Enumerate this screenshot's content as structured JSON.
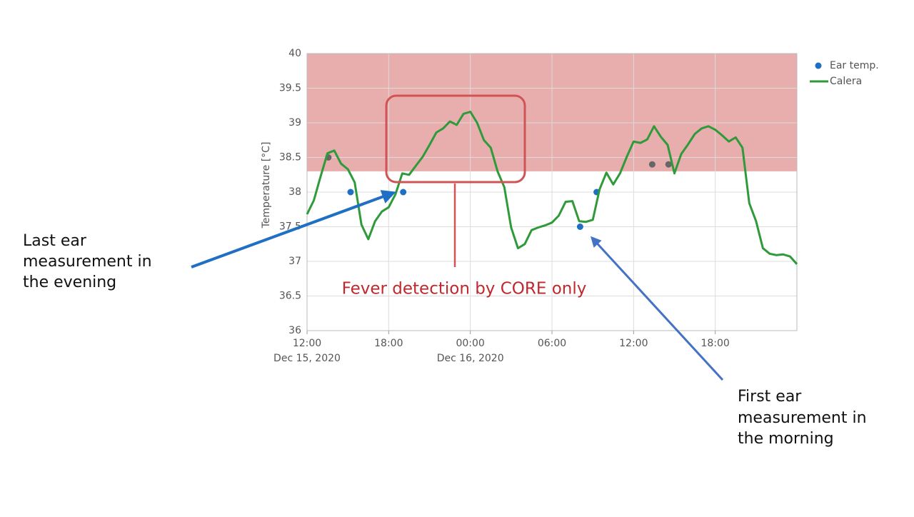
{
  "chart_data": {
    "type": "line",
    "ylabel": "Temperature [°C]",
    "xlim": [
      "2020-12-15 12:00",
      "2020-12-17 00:00"
    ],
    "xticks": [
      {
        "value": "2020-12-15 12:00",
        "label": [
          "12:00",
          "Dec 15, 2020"
        ]
      },
      {
        "value": "2020-12-15 18:00",
        "label": [
          "18:00"
        ]
      },
      {
        "value": "2020-12-16 00:00",
        "label": [
          "00:00",
          "Dec 16, 2020"
        ]
      },
      {
        "value": "2020-12-16 06:00",
        "label": [
          "06:00"
        ]
      },
      {
        "value": "2020-12-16 12:00",
        "label": [
          "12:00"
        ]
      },
      {
        "value": "2020-12-16 18:00",
        "label": [
          "18:00"
        ]
      }
    ],
    "ylim": [
      36,
      40
    ],
    "yticks": [
      36,
      36.5,
      37,
      37.5,
      38,
      38.5,
      39,
      39.5,
      40
    ],
    "grid": true,
    "legend": "outside-top-right",
    "fever_band": {
      "from": 38.3,
      "to": 40,
      "color": "#e8adad"
    },
    "series": [
      {
        "name": "Ear temp.",
        "type": "scatter",
        "color": "#1f6fc5",
        "x": [
          "2020-12-15 13:34",
          "2020-12-15 15:12",
          "2020-12-15 19:04",
          "2020-12-16 08:04",
          "2020-12-16 09:17",
          "2020-12-16 13:22",
          "2020-12-16 14:34"
        ],
        "values": [
          38.5,
          38.0,
          38.0,
          37.5,
          38.0,
          38.4,
          38.4
        ],
        "colors": [
          "#666666",
          "#1f6fc5",
          "#1f6fc5",
          "#1f6fc5",
          "#1f6fc5",
          "#666666",
          "#666666"
        ]
      },
      {
        "name": "Calera",
        "type": "line",
        "color": "#2e9a3a",
        "x": [
          "2020-12-15 12:00",
          "2020-12-15 12:30",
          "2020-12-15 13:00",
          "2020-12-15 13:30",
          "2020-12-15 14:00",
          "2020-12-15 14:30",
          "2020-12-15 15:00",
          "2020-12-15 15:30",
          "2020-12-15 16:00",
          "2020-12-15 16:30",
          "2020-12-15 17:00",
          "2020-12-15 17:30",
          "2020-12-15 18:00",
          "2020-12-15 18:30",
          "2020-12-15 19:00",
          "2020-12-15 19:30",
          "2020-12-15 20:00",
          "2020-12-15 20:30",
          "2020-12-15 21:00",
          "2020-12-15 21:30",
          "2020-12-15 22:00",
          "2020-12-15 22:30",
          "2020-12-15 23:00",
          "2020-12-15 23:30",
          "2020-12-16 00:00",
          "2020-12-16 00:30",
          "2020-12-16 01:00",
          "2020-12-16 01:30",
          "2020-12-16 02:00",
          "2020-12-16 02:30",
          "2020-12-16 03:00",
          "2020-12-16 03:30",
          "2020-12-16 04:00",
          "2020-12-16 04:30",
          "2020-12-16 05:00",
          "2020-12-16 05:30",
          "2020-12-16 06:00",
          "2020-12-16 06:30",
          "2020-12-16 07:00",
          "2020-12-16 07:30",
          "2020-12-16 08:00",
          "2020-12-16 08:30",
          "2020-12-16 09:00",
          "2020-12-16 09:30",
          "2020-12-16 10:00",
          "2020-12-16 10:30",
          "2020-12-16 11:00",
          "2020-12-16 11:30",
          "2020-12-16 12:00",
          "2020-12-16 12:30",
          "2020-12-16 13:00",
          "2020-12-16 13:30",
          "2020-12-16 14:00",
          "2020-12-16 14:30",
          "2020-12-16 15:00",
          "2020-12-16 15:30",
          "2020-12-16 16:00",
          "2020-12-16 16:30",
          "2020-12-16 17:00",
          "2020-12-16 17:30",
          "2020-12-16 18:00",
          "2020-12-16 18:30",
          "2020-12-16 19:00",
          "2020-12-16 19:30",
          "2020-12-16 20:00",
          "2020-12-16 20:30",
          "2020-12-16 21:00",
          "2020-12-16 21:30",
          "2020-12-16 22:00",
          "2020-12-16 22:30",
          "2020-12-16 23:00",
          "2020-12-16 23:30",
          "2020-12-17 00:00"
        ],
        "values": [
          37.68,
          37.88,
          38.23,
          38.56,
          38.6,
          38.41,
          38.33,
          38.14,
          37.53,
          37.32,
          37.58,
          37.72,
          37.78,
          37.97,
          38.27,
          38.25,
          38.38,
          38.51,
          38.68,
          38.86,
          38.92,
          39.02,
          38.97,
          39.13,
          39.16,
          39.0,
          38.75,
          38.64,
          38.3,
          38.07,
          37.49,
          37.19,
          37.25,
          37.45,
          37.49,
          37.52,
          37.56,
          37.66,
          37.86,
          37.87,
          37.58,
          37.57,
          37.6,
          38.04,
          38.28,
          38.11,
          38.27,
          38.51,
          38.73,
          38.71,
          38.76,
          38.95,
          38.8,
          38.68,
          38.27,
          38.55,
          38.69,
          38.84,
          38.92,
          38.95,
          38.9,
          38.82,
          38.73,
          38.79,
          38.64,
          37.84,
          37.58,
          37.19,
          37.11,
          37.09,
          37.1,
          37.07,
          36.96
        ]
      }
    ],
    "annotations": {
      "fever": "Fever detection by CORE only",
      "evening": [
        "Last ear",
        "measurement in",
        "the evening"
      ],
      "morning": [
        "First ear",
        "measurement in",
        "the morning"
      ]
    }
  }
}
